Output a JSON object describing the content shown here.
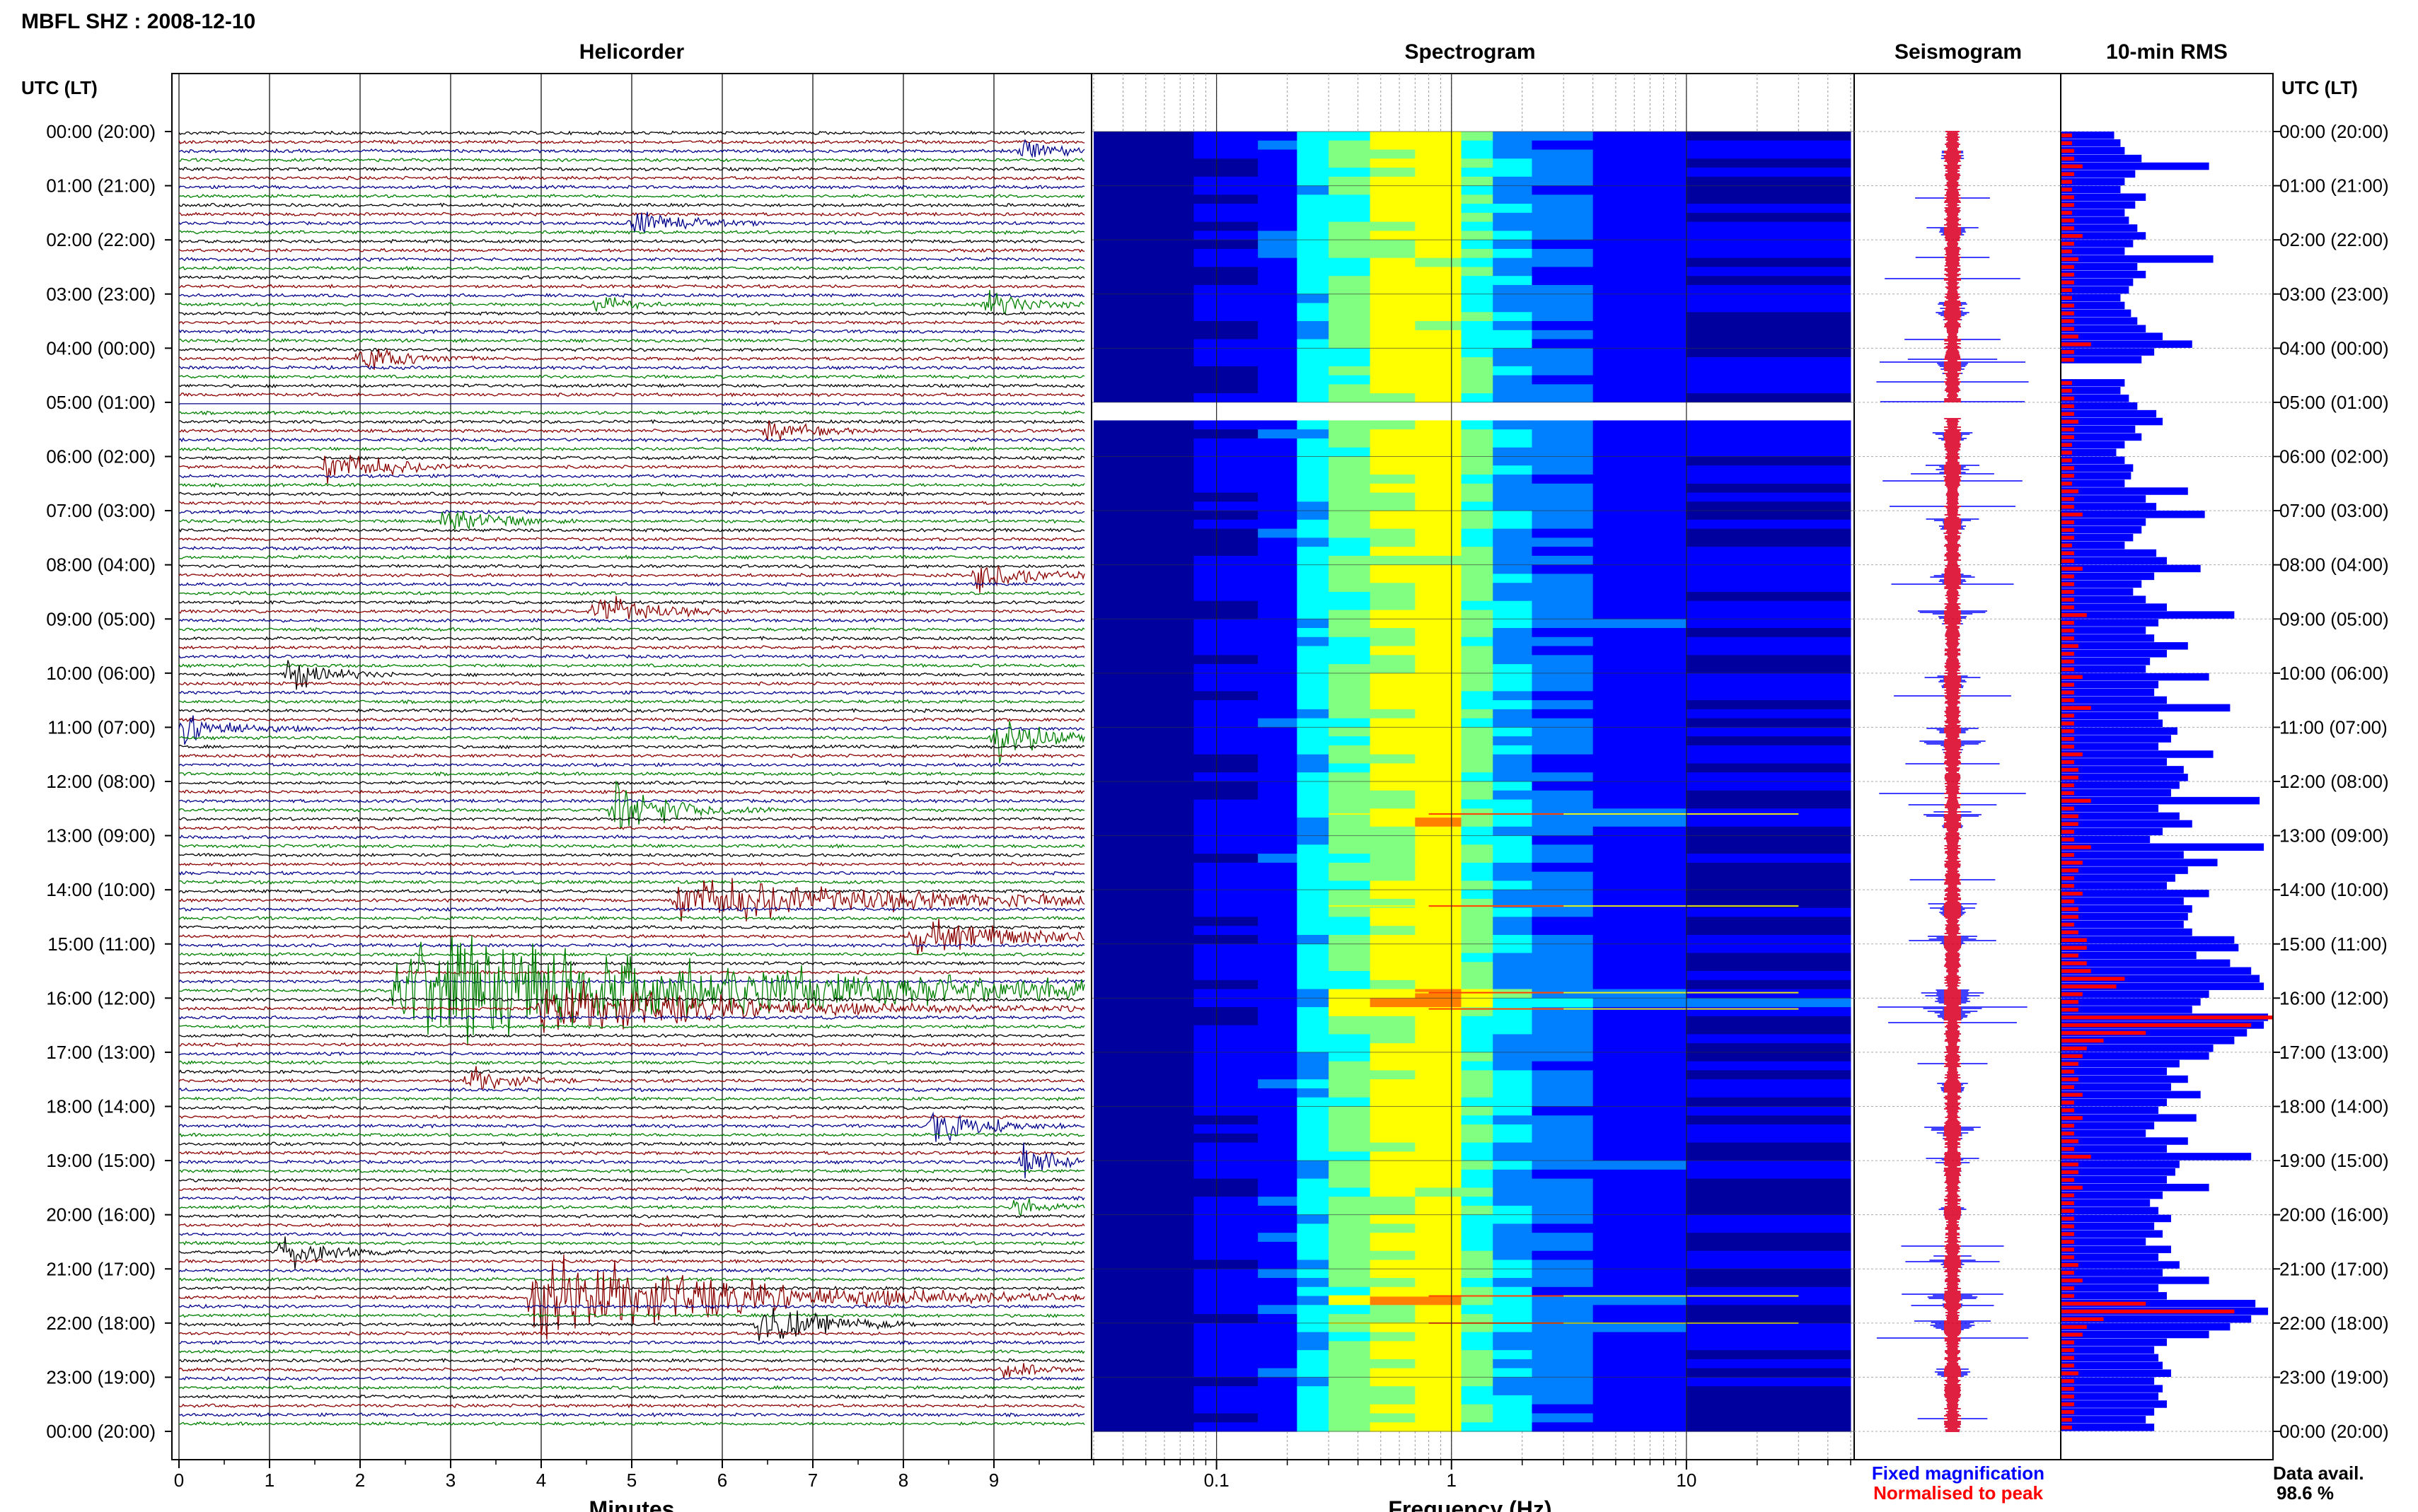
{
  "header": {
    "station_title": "MBFL SHZ : 2008-12-10",
    "panel_helicorder": "Helicorder",
    "panel_spectrogram": "Spectrogram",
    "panel_seismogram": "Seismogram",
    "panel_rms": "10-min RMS",
    "time_axis_label": "UTC (LT)"
  },
  "footer": {
    "minutes_label": "Minutes",
    "frequency_label": "Frequency (Hz)",
    "legend_fixed": "Fixed magnification",
    "legend_normalised": "Normalised to peak",
    "data_avail_label": "Data avail.",
    "data_avail_value": "98.6 %"
  },
  "colors": {
    "trace_black": "#000000",
    "trace_red": "#8b0000",
    "trace_blue": "#00008b",
    "trace_green": "#008000",
    "fixed_magnification": "#0000ff",
    "normalised_to_peak": "#ff0000"
  },
  "chart_data": {
    "type": "heatmap",
    "time_labels": [
      "00:00 (20:00)",
      "01:00 (21:00)",
      "02:00 (22:00)",
      "03:00 (23:00)",
      "04:00 (00:00)",
      "05:00 (01:00)",
      "06:00 (02:00)",
      "07:00 (03:00)",
      "08:00 (04:00)",
      "09:00 (05:00)",
      "10:00 (06:00)",
      "11:00 (07:00)",
      "12:00 (08:00)",
      "13:00 (09:00)",
      "14:00 (10:00)",
      "15:00 (11:00)",
      "16:00 (12:00)",
      "17:00 (13:00)",
      "18:00 (14:00)",
      "19:00 (15:00)",
      "20:00 (16:00)",
      "21:00 (17:00)",
      "22:00 (18:00)",
      "23:00 (19:00)",
      "00:00 (20:00)"
    ],
    "helicorder": {
      "minute_ticks": [
        "0",
        "1",
        "2",
        "3",
        "4",
        "5",
        "6",
        "7",
        "8",
        "9"
      ],
      "xlim": [
        0,
        10
      ],
      "lines_per_hour": 6,
      "trace_color_cycle": [
        "black",
        "red",
        "blue",
        "green"
      ],
      "data_gap": [
        5.0,
        5.1
      ]
    },
    "spectrogram": {
      "xscale": "log",
      "xlim": [
        0.03,
        50
      ],
      "tick_labels": [
        "0.1",
        "1",
        "10"
      ],
      "tick_values": [
        0.1,
        1,
        10
      ],
      "colormap": [
        "#00009f",
        "#0000ff",
        "#0080ff",
        "#00ffff",
        "#80ff80",
        "#ffff00",
        "#ff8000",
        "#ff0000"
      ],
      "peak_band_hz": [
        0.25,
        1.5
      ],
      "data_gap": [
        5.0,
        5.3
      ]
    },
    "seismogram": {
      "series": [
        "Fixed magnification",
        "Normalised to peak"
      ]
    },
    "rms": {
      "interval_minutes": 10,
      "series": [
        "Fixed magnification",
        "Normalised to peak"
      ],
      "xlim": [
        0,
        1
      ],
      "fixed_values": [
        0.25,
        0.28,
        0.3,
        0.38,
        0.7,
        0.35,
        0.3,
        0.28,
        0.4,
        0.35,
        0.3,
        0.32,
        0.36,
        0.4,
        0.34,
        0.3,
        0.72,
        0.36,
        0.4,
        0.34,
        0.32,
        0.28,
        0.3,
        0.33,
        0.36,
        0.4,
        0.48,
        0.62,
        0.44,
        0.38,
        0.34,
        0.4,
        0.3,
        0.28,
        0.32,
        0.36,
        0.45,
        0.48,
        0.35,
        0.38,
        0.3,
        0.26,
        0.3,
        0.34,
        0.33,
        0.3,
        0.6,
        0.4,
        0.45,
        0.68,
        0.4,
        0.38,
        0.34,
        0.3,
        0.45,
        0.5,
        0.66,
        0.44,
        0.38,
        0.34,
        0.4,
        0.5,
        0.82,
        0.46,
        0.4,
        0.44,
        0.6,
        0.5,
        0.42,
        0.4,
        0.7,
        0.46,
        0.44,
        0.5,
        0.8,
        0.46,
        0.48,
        0.55,
        0.52,
        0.46,
        0.72,
        0.5,
        0.58,
        0.6,
        0.56,
        0.52,
        0.94,
        0.46,
        0.56,
        0.62,
        0.48,
        0.42,
        0.96,
        0.58,
        0.74,
        0.6,
        0.54,
        0.5,
        0.7,
        0.58,
        0.62,
        0.6,
        0.58,
        0.62,
        0.82,
        0.84,
        0.64,
        0.8,
        0.9,
        0.94,
        0.96,
        0.7,
        0.66,
        0.62,
        0.98,
        0.96,
        0.88,
        0.82,
        0.72,
        0.7,
        0.56,
        0.5,
        0.6,
        0.52,
        0.66,
        0.5,
        0.46,
        0.64,
        0.44,
        0.4,
        0.6,
        0.5,
        0.9,
        0.56,
        0.54,
        0.5,
        0.7,
        0.48,
        0.42,
        0.46,
        0.52,
        0.44,
        0.48,
        0.4,
        0.52,
        0.46,
        0.56,
        0.48,
        0.7,
        0.46,
        0.5,
        0.92,
        0.98,
        0.9,
        0.8,
        0.7,
        0.5,
        0.44,
        0.46,
        0.48,
        0.52,
        0.44,
        0.48,
        0.46,
        0.5,
        0.44,
        0.4,
        0.44
      ],
      "normalised_values": [
        0.05,
        0.05,
        0.06,
        0.06,
        0.1,
        0.06,
        0.05,
        0.05,
        0.06,
        0.06,
        0.05,
        0.06,
        0.06,
        0.1,
        0.06,
        0.05,
        0.08,
        0.06,
        0.06,
        0.06,
        0.05,
        0.05,
        0.06,
        0.06,
        0.06,
        0.06,
        0.08,
        0.14,
        0.06,
        0.06,
        0.06,
        0.06,
        0.05,
        0.05,
        0.06,
        0.06,
        0.06,
        0.08,
        0.06,
        0.06,
        0.05,
        0.05,
        0.05,
        0.06,
        0.06,
        0.05,
        0.08,
        0.06,
        0.06,
        0.1,
        0.06,
        0.06,
        0.06,
        0.05,
        0.06,
        0.06,
        0.1,
        0.06,
        0.06,
        0.06,
        0.06,
        0.06,
        0.12,
        0.06,
        0.06,
        0.06,
        0.08,
        0.06,
        0.06,
        0.06,
        0.1,
        0.06,
        0.06,
        0.06,
        0.14,
        0.06,
        0.06,
        0.06,
        0.06,
        0.06,
        0.1,
        0.06,
        0.08,
        0.08,
        0.06,
        0.06,
        0.14,
        0.06,
        0.08,
        0.08,
        0.06,
        0.06,
        0.14,
        0.06,
        0.1,
        0.08,
        0.06,
        0.06,
        0.1,
        0.06,
        0.08,
        0.08,
        0.06,
        0.08,
        0.12,
        0.12,
        0.08,
        0.12,
        0.14,
        0.3,
        0.26,
        0.1,
        0.08,
        0.08,
        1.0,
        0.9,
        0.4,
        0.2,
        0.12,
        0.1,
        0.08,
        0.06,
        0.08,
        0.06,
        0.1,
        0.06,
        0.06,
        0.1,
        0.06,
        0.06,
        0.08,
        0.06,
        0.14,
        0.08,
        0.08,
        0.06,
        0.1,
        0.06,
        0.06,
        0.06,
        0.06,
        0.06,
        0.06,
        0.06,
        0.06,
        0.06,
        0.08,
        0.06,
        0.1,
        0.06,
        0.06,
        0.4,
        0.82,
        0.2,
        0.12,
        0.1,
        0.06,
        0.06,
        0.06,
        0.06,
        0.08,
        0.06,
        0.06,
        0.06,
        0.06,
        0.06,
        0.05,
        0.05
      ]
    },
    "events": [
      {
        "hour": 0.4,
        "minute": 9.3,
        "amp": 0.6,
        "dur": 0.4
      },
      {
        "hour": 1.8,
        "minute": 5.0,
        "amp": 0.7,
        "dur": 0.5
      },
      {
        "hour": 3.2,
        "minute": 4.6,
        "amp": 0.5,
        "dur": 0.3
      },
      {
        "hour": 3.3,
        "minute": 8.9,
        "amp": 0.7,
        "dur": 0.4
      },
      {
        "hour": 4.3,
        "minute": 2.0,
        "amp": 0.7,
        "dur": 0.5
      },
      {
        "hour": 5.6,
        "minute": 6.5,
        "amp": 0.6,
        "dur": 0.4
      },
      {
        "hour": 6.2,
        "minute": 1.6,
        "amp": 1.0,
        "dur": 0.6
      },
      {
        "hour": 7.2,
        "minute": 2.9,
        "amp": 0.8,
        "dur": 0.5
      },
      {
        "hour": 8.2,
        "minute": 8.8,
        "amp": 0.9,
        "dur": 0.5
      },
      {
        "hour": 8.9,
        "minute": 4.6,
        "amp": 1.1,
        "dur": 0.5
      },
      {
        "hour": 10.1,
        "minute": 1.2,
        "amp": 0.8,
        "dur": 0.4
      },
      {
        "hour": 11.0,
        "minute": 0.0,
        "amp": 0.9,
        "dur": 0.5
      },
      {
        "hour": 11.3,
        "minute": 9.0,
        "amp": 1.1,
        "dur": 0.6
      },
      {
        "hour": 12.6,
        "minute": 4.8,
        "amp": 1.3,
        "dur": 0.6
      },
      {
        "hour": 14.3,
        "minute": 5.5,
        "amp": 1.2,
        "dur": 2.6
      },
      {
        "hour": 14.9,
        "minute": 8.1,
        "amp": 0.8,
        "dur": 1.4
      },
      {
        "hour": 15.9,
        "minute": 2.4,
        "amp": 2.6,
        "dur": 5.0
      },
      {
        "hour": 16.2,
        "minute": 4.0,
        "amp": 1.5,
        "dur": 2.0
      },
      {
        "hour": 17.6,
        "minute": 3.2,
        "amp": 0.7,
        "dur": 0.4
      },
      {
        "hour": 18.4,
        "minute": 8.3,
        "amp": 1.0,
        "dur": 0.5
      },
      {
        "hour": 19.0,
        "minute": 9.3,
        "amp": 0.8,
        "dur": 0.4
      },
      {
        "hour": 19.9,
        "minute": 9.2,
        "amp": 0.6,
        "dur": 0.3
      },
      {
        "hour": 20.8,
        "minute": 1.1,
        "amp": 0.9,
        "dur": 0.5
      },
      {
        "hour": 21.5,
        "minute": 3.9,
        "amp": 2.4,
        "dur": 2.2
      },
      {
        "hour": 22.0,
        "minute": 6.4,
        "amp": 1.2,
        "dur": 0.6
      },
      {
        "hour": 22.9,
        "minute": 9.1,
        "amp": 0.5,
        "dur": 0.3
      }
    ]
  }
}
